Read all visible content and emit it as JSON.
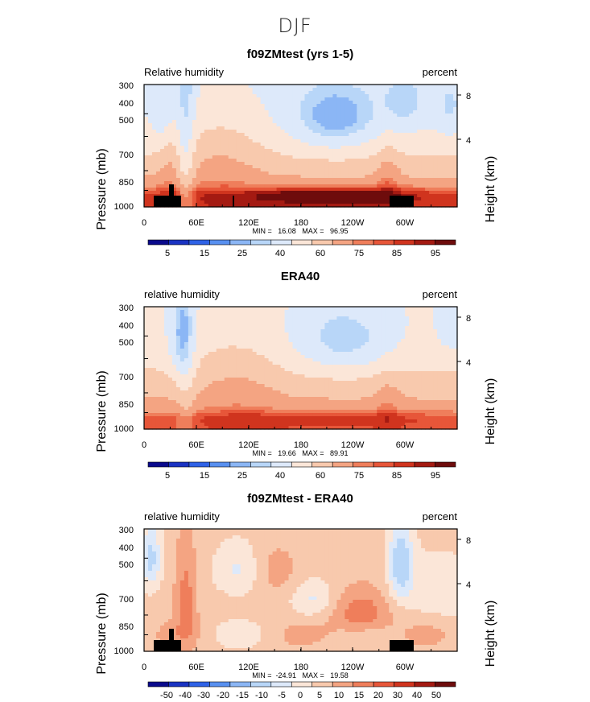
{
  "figure": {
    "title": "DJF"
  },
  "colors": {
    "rh_palette": [
      "#0a0a8c",
      "#1a33c2",
      "#2f62e6",
      "#5890f0",
      "#8bb6f5",
      "#b8d6f8",
      "#dde9fa",
      "#fbe6d8",
      "#f8c9ad",
      "#f4a482",
      "#ef7e5b",
      "#e75639",
      "#d0341e",
      "#a41a12",
      "#6e0c0c"
    ],
    "diff_palette": [
      "#0a0a8c",
      "#1a33c2",
      "#2f62e6",
      "#5890f0",
      "#8bb6f5",
      "#b8d6f8",
      "#dde9fa",
      "#fbe6d8",
      "#f8c9ad",
      "#f4a482",
      "#ef7e5b",
      "#e75639",
      "#d0341e",
      "#a41a12",
      "#6e0c0c"
    ]
  },
  "chart_data": [
    {
      "type": "heatmap",
      "title": "f09ZMtest (yrs 1-5)",
      "left_label": "Relative humidity",
      "right_label": "percent",
      "ylabel": "Pressure (mb)",
      "ylabel_right": "Height (km)",
      "x_ticks": [
        "0",
        "60E",
        "120E",
        "180",
        "120W",
        "60W"
      ],
      "y_ticks": [
        "300",
        "400",
        "500",
        "700",
        "850",
        "1000"
      ],
      "right_ticks": [
        "8",
        "4"
      ],
      "stats": "MIN =   16.08   MAX =   96.95",
      "colorbar_labels": [
        "5",
        "15",
        "25",
        "40",
        "60",
        "75",
        "85",
        "95"
      ],
      "mode": "model",
      "topography": true
    },
    {
      "type": "heatmap",
      "title": "ERA40",
      "left_label": "relative humidity",
      "right_label": "percent",
      "ylabel": "Pressure (mb)",
      "ylabel_right": "Height (km)",
      "x_ticks": [
        "0",
        "60E",
        "120E",
        "180",
        "120W",
        "60W"
      ],
      "y_ticks": [
        "300",
        "400",
        "500",
        "700",
        "850",
        "1000"
      ],
      "right_ticks": [
        "8",
        "4"
      ],
      "stats": "MIN =   19.66   MAX =   89.91",
      "colorbar_labels": [
        "5",
        "15",
        "25",
        "40",
        "60",
        "75",
        "85",
        "95"
      ],
      "mode": "obs",
      "topography": false
    },
    {
      "type": "heatmap",
      "title": "f09ZMtest - ERA40",
      "left_label": "relative humidity",
      "right_label": "percent",
      "ylabel": "Pressure (mb)",
      "ylabel_right": "Height (km)",
      "x_ticks": [
        "0",
        "60E",
        "120E",
        "180",
        "120W",
        "60W"
      ],
      "y_ticks": [
        "300",
        "400",
        "500",
        "700",
        "850",
        "1000"
      ],
      "right_ticks": [
        "8",
        "4"
      ],
      "stats": "MIN =  -24.91   MAX =   19.58",
      "colorbar_labels": [
        "-50",
        "-40",
        "-30",
        "-20",
        "-15",
        "-10",
        "-5",
        "0",
        "5",
        "10",
        "15",
        "20",
        "30",
        "40",
        "50"
      ],
      "mode": "diff",
      "topography": true
    }
  ]
}
